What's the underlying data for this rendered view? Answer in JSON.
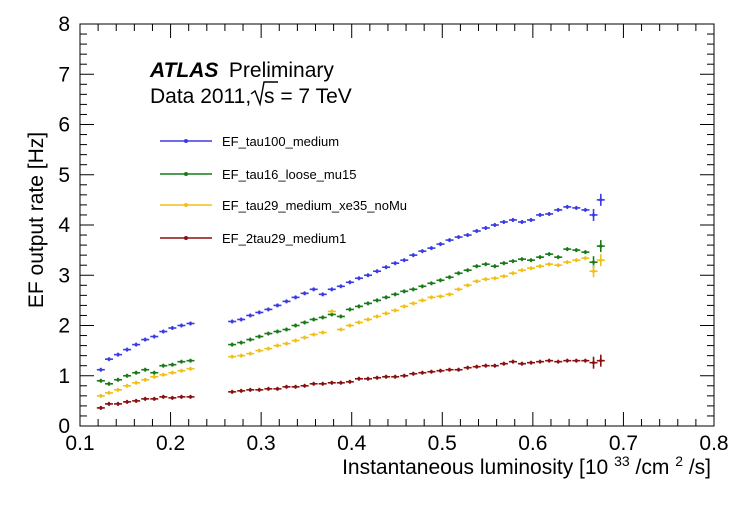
{
  "chart_data": {
    "type": "scatter",
    "title": "",
    "xlabel": "Instantaneous luminosity [10",
    "xlabel_exp": "33",
    "xlabel_unit": "/cm",
    "xlabel_exp2": "2",
    "xlabel_end": "/s]",
    "ylabel": "EF output rate [Hz]",
    "xlim": [
      0.1,
      0.8
    ],
    "ylim": [
      0,
      8
    ],
    "xticks": [
      "0.1",
      "0.2",
      "0.3",
      "0.4",
      "0.5",
      "0.6",
      "0.7",
      "0.8"
    ],
    "yticks": [
      "0",
      "1",
      "2",
      "3",
      "4",
      "5",
      "6",
      "7",
      "8"
    ],
    "annotation": {
      "experiment": "ATLAS",
      "status": "Preliminary",
      "dataset": "Data 2011,",
      "energy_label": "s = 7 TeV"
    },
    "legend_position": "top-left",
    "series": [
      {
        "name": "EF_tau100_medium",
        "color": "#3b3be6",
        "x": [
          0.123,
          0.132,
          0.142,
          0.152,
          0.162,
          0.172,
          0.182,
          0.192,
          0.202,
          0.212,
          0.222,
          0.268,
          0.278,
          0.288,
          0.298,
          0.308,
          0.318,
          0.328,
          0.338,
          0.348,
          0.358,
          0.368,
          0.378,
          0.388,
          0.398,
          0.408,
          0.418,
          0.428,
          0.438,
          0.448,
          0.458,
          0.468,
          0.478,
          0.488,
          0.498,
          0.508,
          0.518,
          0.528,
          0.538,
          0.548,
          0.558,
          0.568,
          0.578,
          0.588,
          0.598,
          0.608,
          0.618,
          0.628,
          0.638,
          0.648,
          0.658,
          0.667,
          0.675
        ],
        "y": [
          1.12,
          1.33,
          1.42,
          1.52,
          1.62,
          1.72,
          1.78,
          1.88,
          1.95,
          2.0,
          2.04,
          2.08,
          2.12,
          2.2,
          2.26,
          2.32,
          2.4,
          2.48,
          2.56,
          2.64,
          2.72,
          2.62,
          2.72,
          2.78,
          2.86,
          2.94,
          3.0,
          3.08,
          3.16,
          3.24,
          3.3,
          3.4,
          3.48,
          3.54,
          3.62,
          3.7,
          3.76,
          3.8,
          3.88,
          3.94,
          4.0,
          4.06,
          4.1,
          4.06,
          4.1,
          4.2,
          4.22,
          4.3,
          4.36,
          4.34,
          4.3,
          4.2,
          4.5
        ]
      },
      {
        "name": "EF_tau16_loose_mu15",
        "color": "#1a7a1a",
        "x": [
          0.123,
          0.132,
          0.142,
          0.152,
          0.162,
          0.172,
          0.182,
          0.192,
          0.202,
          0.212,
          0.222,
          0.268,
          0.278,
          0.288,
          0.298,
          0.308,
          0.318,
          0.328,
          0.338,
          0.348,
          0.358,
          0.368,
          0.378,
          0.388,
          0.398,
          0.408,
          0.418,
          0.428,
          0.438,
          0.448,
          0.458,
          0.468,
          0.478,
          0.488,
          0.498,
          0.508,
          0.518,
          0.528,
          0.538,
          0.548,
          0.558,
          0.568,
          0.578,
          0.588,
          0.598,
          0.608,
          0.618,
          0.628,
          0.638,
          0.648,
          0.658,
          0.667,
          0.675
        ],
        "y": [
          0.9,
          0.84,
          0.92,
          1.0,
          1.06,
          1.12,
          1.06,
          1.2,
          1.22,
          1.28,
          1.3,
          1.62,
          1.66,
          1.72,
          1.78,
          1.84,
          1.88,
          1.92,
          2.0,
          2.06,
          2.12,
          2.16,
          2.22,
          2.18,
          2.32,
          2.38,
          2.44,
          2.5,
          2.56,
          2.62,
          2.68,
          2.72,
          2.78,
          2.84,
          2.9,
          2.96,
          3.04,
          3.1,
          3.18,
          3.22,
          3.18,
          3.24,
          3.28,
          3.32,
          3.3,
          3.36,
          3.42,
          3.36,
          3.52,
          3.5,
          3.46,
          3.26,
          3.58
        ]
      },
      {
        "name": "EF_tau29_medium_xe35_noMu",
        "color": "#f0c018",
        "x": [
          0.123,
          0.132,
          0.142,
          0.152,
          0.162,
          0.172,
          0.182,
          0.192,
          0.202,
          0.212,
          0.222,
          0.268,
          0.278,
          0.288,
          0.298,
          0.308,
          0.318,
          0.328,
          0.338,
          0.348,
          0.358,
          0.368,
          0.378,
          0.388,
          0.398,
          0.408,
          0.418,
          0.428,
          0.438,
          0.448,
          0.458,
          0.468,
          0.478,
          0.488,
          0.498,
          0.508,
          0.518,
          0.528,
          0.538,
          0.548,
          0.558,
          0.568,
          0.578,
          0.588,
          0.598,
          0.608,
          0.618,
          0.628,
          0.638,
          0.648,
          0.658,
          0.667,
          0.675
        ],
        "y": [
          0.6,
          0.66,
          0.72,
          0.8,
          0.86,
          0.92,
          0.98,
          1.02,
          1.06,
          1.1,
          1.14,
          1.38,
          1.4,
          1.44,
          1.5,
          1.54,
          1.6,
          1.64,
          1.7,
          1.76,
          1.82,
          1.86,
          2.28,
          1.92,
          2.0,
          2.06,
          2.12,
          2.18,
          2.24,
          2.3,
          2.38,
          2.44,
          2.5,
          2.56,
          2.58,
          2.62,
          2.72,
          2.8,
          2.88,
          2.92,
          2.94,
          2.98,
          3.04,
          3.1,
          3.14,
          3.18,
          3.22,
          3.2,
          3.26,
          3.3,
          3.34,
          3.08,
          3.3
        ]
      },
      {
        "name": "EF_2tau29_medium1",
        "color": "#8a1010",
        "x": [
          0.123,
          0.132,
          0.142,
          0.152,
          0.162,
          0.172,
          0.182,
          0.192,
          0.202,
          0.212,
          0.222,
          0.268,
          0.278,
          0.288,
          0.298,
          0.308,
          0.318,
          0.328,
          0.338,
          0.348,
          0.358,
          0.368,
          0.378,
          0.388,
          0.398,
          0.408,
          0.418,
          0.428,
          0.438,
          0.448,
          0.458,
          0.468,
          0.478,
          0.488,
          0.498,
          0.508,
          0.518,
          0.528,
          0.538,
          0.548,
          0.558,
          0.568,
          0.578,
          0.588,
          0.598,
          0.608,
          0.618,
          0.628,
          0.638,
          0.648,
          0.658,
          0.667,
          0.675
        ],
        "y": [
          0.36,
          0.44,
          0.44,
          0.48,
          0.5,
          0.54,
          0.54,
          0.58,
          0.56,
          0.58,
          0.58,
          0.68,
          0.7,
          0.72,
          0.72,
          0.74,
          0.74,
          0.78,
          0.78,
          0.8,
          0.84,
          0.84,
          0.86,
          0.86,
          0.88,
          0.94,
          0.94,
          0.96,
          0.98,
          0.98,
          1.0,
          1.04,
          1.06,
          1.08,
          1.1,
          1.12,
          1.12,
          1.16,
          1.18,
          1.2,
          1.2,
          1.24,
          1.28,
          1.24,
          1.26,
          1.28,
          1.3,
          1.28,
          1.3,
          1.3,
          1.3,
          1.26,
          1.3
        ]
      }
    ]
  }
}
